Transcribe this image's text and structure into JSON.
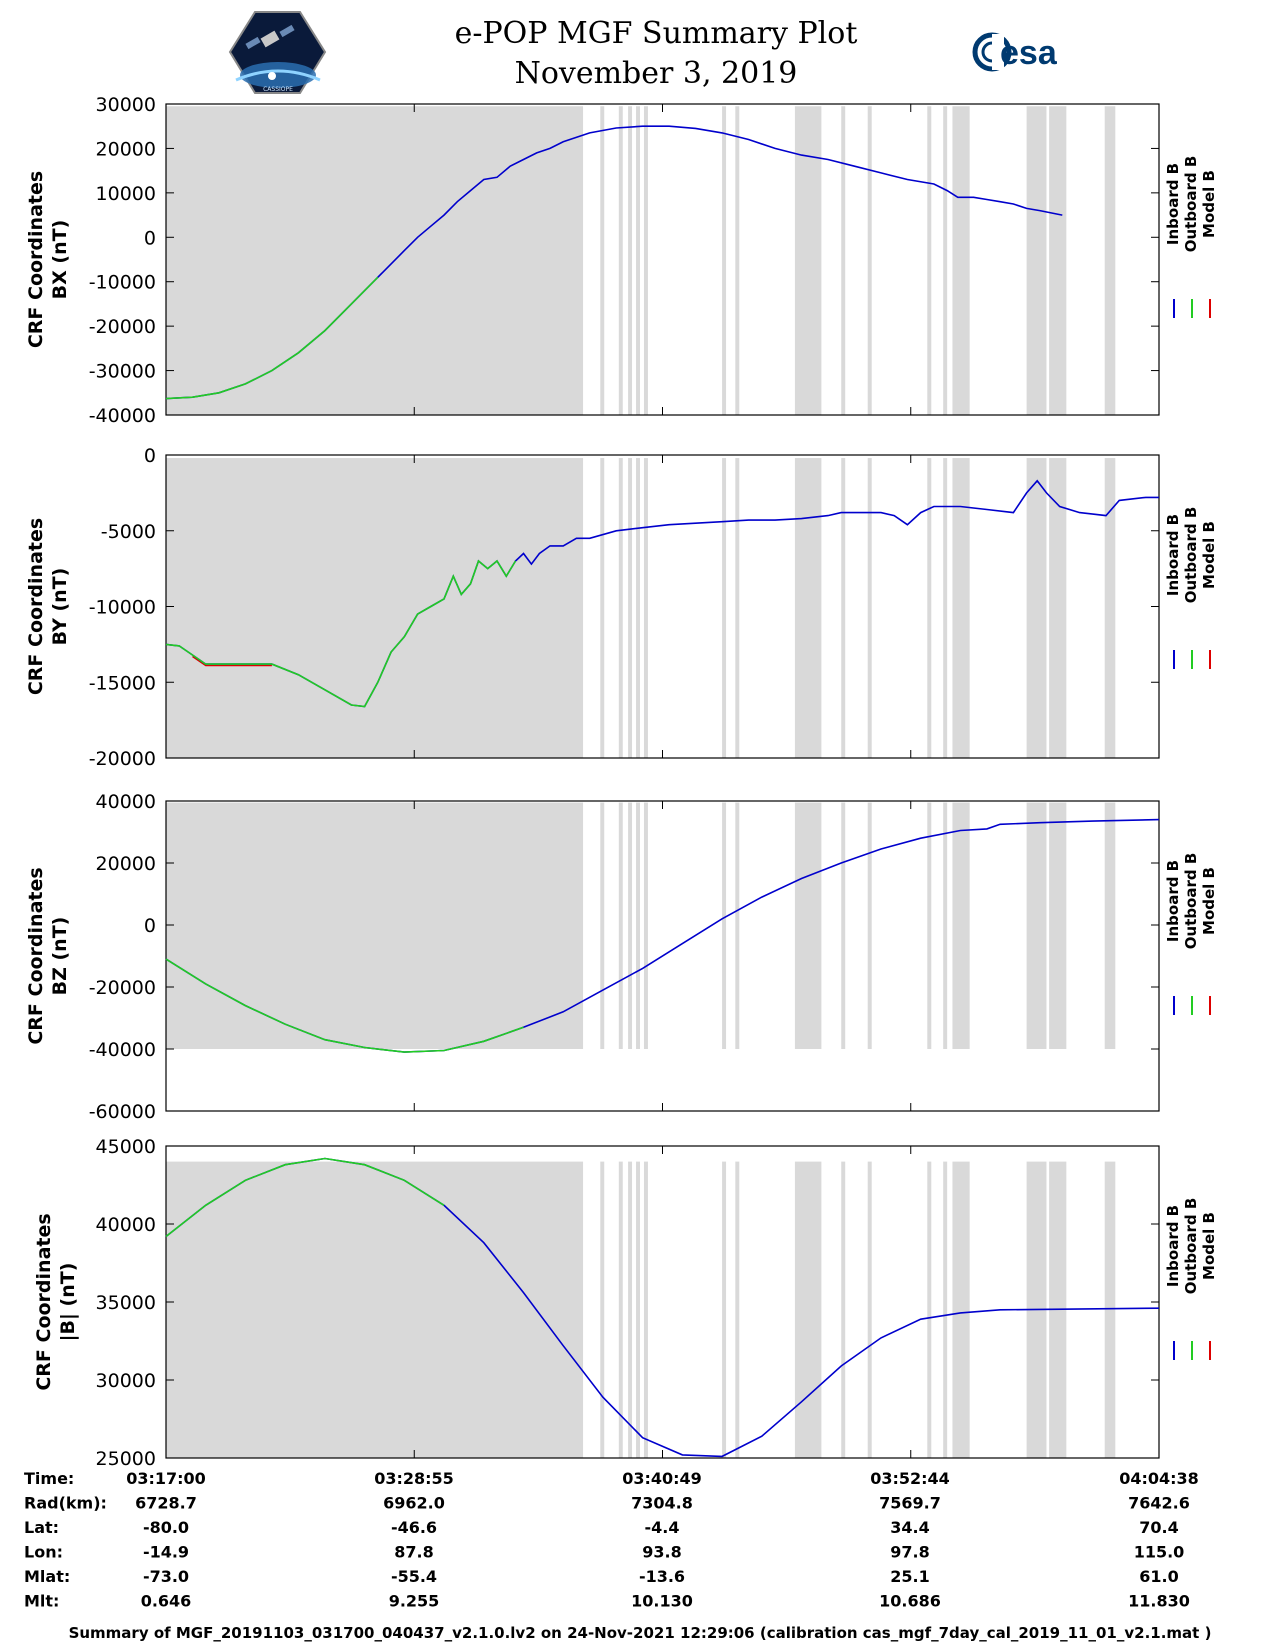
{
  "header": {
    "title": "e-POP MGF Summary Plot",
    "date": "November 3, 2019",
    "esa_logo": "esa",
    "mission_patch_text": "CASSIOPE"
  },
  "colors": {
    "inboard": "#0000cc",
    "outboard": "#22cc22",
    "model": "#dd0000",
    "shade": "#d9d9d9"
  },
  "legend": [
    "Inboard B",
    "Outboard B",
    "Model B"
  ],
  "chart_data": [
    {
      "type": "line",
      "id": "bx",
      "ylabel_line1": "CRF Coordinates",
      "ylabel_line2": "BX (nT)",
      "ylim": [
        -40000,
        30000
      ],
      "yticks": [
        30000,
        20000,
        10000,
        0,
        -10000,
        -20000,
        -30000,
        -40000
      ],
      "shade_top": 29500,
      "shade_bottom": -40000,
      "x_range_min": [
        0,
        47.63
      ],
      "green_end": 16.8,
      "series_points": [
        [
          0,
          -36300
        ],
        [
          2,
          -36000
        ],
        [
          4,
          -35000
        ],
        [
          6,
          -33000
        ],
        [
          8,
          -30000
        ],
        [
          10,
          -26000
        ],
        [
          12,
          -21000
        ],
        [
          14,
          -15000
        ],
        [
          16,
          -9000
        ],
        [
          18,
          -3000
        ],
        [
          19,
          0
        ],
        [
          20,
          2500
        ],
        [
          21,
          5000
        ],
        [
          22,
          8000
        ],
        [
          23,
          10500
        ],
        [
          24,
          13000
        ],
        [
          25,
          13500
        ],
        [
          26,
          16000
        ],
        [
          27,
          17500
        ],
        [
          28,
          19000
        ],
        [
          29,
          20000
        ],
        [
          30,
          21500
        ],
        [
          32,
          23500
        ],
        [
          34,
          24600
        ],
        [
          36,
          25000
        ],
        [
          38,
          25000
        ],
        [
          40,
          24500
        ],
        [
          42,
          23500
        ],
        [
          44,
          22000
        ],
        [
          46,
          20000
        ],
        [
          48,
          18500
        ],
        [
          50,
          17500
        ],
        [
          52,
          16000
        ],
        [
          54,
          14500
        ],
        [
          56,
          13000
        ],
        [
          58,
          12000
        ],
        [
          59,
          10500
        ],
        [
          59.8,
          9000
        ],
        [
          61,
          9000
        ],
        [
          62,
          8500
        ],
        [
          63,
          8000
        ],
        [
          64,
          7500
        ],
        [
          65,
          6500
        ],
        [
          66,
          6000
        ],
        [
          67.7,
          5000
        ]
      ]
    },
    {
      "type": "line",
      "id": "by",
      "ylabel_line1": "CRF Coordinates",
      "ylabel_line2": "BY (nT)",
      "ylim": [
        -20000,
        0
      ],
      "yticks": [
        0,
        -5000,
        -10000,
        -15000,
        -20000
      ],
      "shade_top": -200,
      "shade_bottom": -20000,
      "green_end": 26.5,
      "series_points": [
        [
          0,
          -12500
        ],
        [
          1,
          -12600
        ],
        [
          2,
          -13200
        ],
        [
          3,
          -13800
        ],
        [
          4,
          -13800
        ],
        [
          6,
          -13800
        ],
        [
          8,
          -13800
        ],
        [
          10,
          -14500
        ],
        [
          12,
          -15500
        ],
        [
          14,
          -16500
        ],
        [
          15,
          -16600
        ],
        [
          16,
          -15000
        ],
        [
          17,
          -13000
        ],
        [
          18,
          -12000
        ],
        [
          19,
          -10500
        ],
        [
          20,
          -10000
        ],
        [
          21,
          -9500
        ],
        [
          21.7,
          -8000
        ],
        [
          22.3,
          -9200
        ],
        [
          23,
          -8500
        ],
        [
          23.6,
          -7000
        ],
        [
          24.3,
          -7500
        ],
        [
          25,
          -7000
        ],
        [
          25.7,
          -8000
        ],
        [
          26.4,
          -7000
        ],
        [
          27,
          -6500
        ],
        [
          27.6,
          -7200
        ],
        [
          28.2,
          -6500
        ],
        [
          29,
          -6000
        ],
        [
          30,
          -6000
        ],
        [
          31,
          -5500
        ],
        [
          32,
          -5500
        ],
        [
          34,
          -5000
        ],
        [
          36,
          -4800
        ],
        [
          38,
          -4600
        ],
        [
          40,
          -4500
        ],
        [
          42,
          -4400
        ],
        [
          44,
          -4300
        ],
        [
          46,
          -4300
        ],
        [
          48,
          -4200
        ],
        [
          50,
          -4000
        ],
        [
          51,
          -3800
        ],
        [
          52,
          -3800
        ],
        [
          54,
          -3800
        ],
        [
          55,
          -4000
        ],
        [
          56,
          -4600
        ],
        [
          57,
          -3800
        ],
        [
          58,
          -3400
        ],
        [
          60,
          -3400
        ],
        [
          62,
          -3600
        ],
        [
          64,
          -3800
        ],
        [
          65,
          -2500
        ],
        [
          65.8,
          -1700
        ],
        [
          66.5,
          -2500
        ],
        [
          67.5,
          -3400
        ],
        [
          69,
          -3800
        ],
        [
          70,
          -3900
        ],
        [
          71,
          -4000
        ],
        [
          72,
          -3000
        ],
        [
          74,
          -2800
        ],
        [
          75,
          -2800
        ]
      ]
    },
    {
      "type": "line",
      "id": "bz",
      "ylabel_line1": "CRF Coordinates",
      "ylabel_line2": "BZ (nT)",
      "ylim": [
        -60000,
        40000
      ],
      "yticks": [
        40000,
        20000,
        0,
        -20000,
        -40000,
        -60000
      ],
      "shade_top": 39500,
      "shade_bottom": -40000,
      "green_end": 29,
      "series_points": [
        [
          0,
          -11000
        ],
        [
          3,
          -19000
        ],
        [
          6,
          -26000
        ],
        [
          9,
          -32000
        ],
        [
          12,
          -37000
        ],
        [
          15,
          -39500
        ],
        [
          18,
          -41000
        ],
        [
          21,
          -40500
        ],
        [
          24,
          -37500
        ],
        [
          27,
          -33000
        ],
        [
          30,
          -28000
        ],
        [
          33,
          -21000
        ],
        [
          36,
          -14000
        ],
        [
          39,
          -6000
        ],
        [
          42,
          2000
        ],
        [
          45,
          9000
        ],
        [
          48,
          15000
        ],
        [
          51,
          20000
        ],
        [
          54,
          24500
        ],
        [
          57,
          28000
        ],
        [
          60,
          30500
        ],
        [
          62,
          31000
        ],
        [
          63,
          32500
        ],
        [
          66,
          33000
        ],
        [
          70,
          33500
        ],
        [
          75,
          34000
        ]
      ]
    },
    {
      "type": "line",
      "id": "bmag",
      "ylabel_line1": "CRF Coordinates",
      "ylabel_line2": "|B| (nT)",
      "ylim": [
        25000,
        45000
      ],
      "yticks": [
        45000,
        40000,
        35000,
        30000,
        25000
      ],
      "shade_top": 44000,
      "shade_bottom": 25000,
      "green_end": 22.5,
      "series_points": [
        [
          0,
          39200
        ],
        [
          3,
          41200
        ],
        [
          6,
          42800
        ],
        [
          9,
          43800
        ],
        [
          12,
          44200
        ],
        [
          15,
          43800
        ],
        [
          18,
          42800
        ],
        [
          21,
          41200
        ],
        [
          24,
          38800
        ],
        [
          27,
          35600
        ],
        [
          30,
          32200
        ],
        [
          33,
          28900
        ],
        [
          36,
          26300
        ],
        [
          39,
          25200
        ],
        [
          42,
          25100
        ],
        [
          45,
          26400
        ],
        [
          48,
          28600
        ],
        [
          51,
          30900
        ],
        [
          54,
          32700
        ],
        [
          57,
          33900
        ],
        [
          60,
          34300
        ],
        [
          63,
          34500
        ],
        [
          75,
          34600
        ]
      ]
    }
  ],
  "shaded_intervals": [
    [
      0,
      31.5
    ],
    [
      32.8,
      33.1
    ],
    [
      34.2,
      34.5
    ],
    [
      34.9,
      35.2
    ],
    [
      35.5,
      35.8
    ],
    [
      36.1,
      36.4
    ],
    [
      42,
      42.3
    ],
    [
      43,
      43.3
    ],
    [
      47.5,
      49.5
    ],
    [
      51,
      51.3
    ],
    [
      53,
      53.3
    ],
    [
      57.5,
      57.8
    ],
    [
      58.7,
      59
    ],
    [
      59.4,
      60.7
    ],
    [
      65,
      66.5
    ],
    [
      66.7,
      68
    ],
    [
      70.9,
      71.7
    ]
  ],
  "x_tick_labels": [
    "03:17:00",
    "03:28:55",
    "03:40:49",
    "03:52:44",
    "04:04:38"
  ],
  "table": {
    "rows": [
      {
        "label": "Time:",
        "values": [
          "03:17:00",
          "03:28:55",
          "03:40:49",
          "03:52:44",
          "04:04:38"
        ]
      },
      {
        "label": "Rad(km):",
        "values": [
          "6728.7",
          "6962.0",
          "7304.8",
          "7569.7",
          "7642.6"
        ]
      },
      {
        "label": "Lat:",
        "values": [
          "-80.0",
          "-46.6",
          "-4.4",
          "34.4",
          "70.4"
        ]
      },
      {
        "label": "Lon:",
        "values": [
          "-14.9",
          "87.8",
          "93.8",
          "97.8",
          "115.0"
        ]
      },
      {
        "label": "Mlat:",
        "values": [
          "-73.0",
          "-55.4",
          "-13.6",
          "25.1",
          "61.0"
        ]
      },
      {
        "label": "Mlt:",
        "values": [
          "0.646",
          "9.255",
          "10.130",
          "10.686",
          "11.830"
        ]
      }
    ]
  },
  "footer": "Summary of MGF_20191103_031700_040437_v2.1.0.lv2 on 24-Nov-2021 12:29:06 (calibration cas_mgf_7day_cal_2019_11_01_v2.1.mat )"
}
